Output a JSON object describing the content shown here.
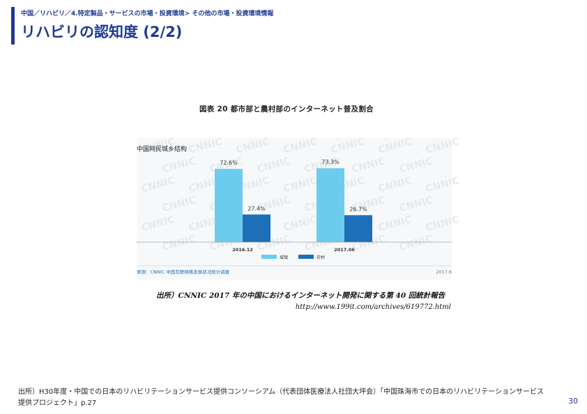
{
  "header": {
    "breadcrumb": "中国／リハビリ／4.特定製品・サービスの市場・投資環境> その他の市場・投資環境情報",
    "title": "リハビリの認知度 (2/2)"
  },
  "figure": {
    "title": "図表 20 都市部と農村部のインターネット普及割合",
    "source": "出所）CNNIC 2017 年の中国におけるインターネット開発に関する第 40 回統計報告",
    "url": "http://www.199it.com/archives/619772.html",
    "watermark": "CNNIC"
  },
  "chart_data": {
    "type": "bar",
    "title": "中国网民城乡结构",
    "categories": [
      "2016.12",
      "2017.06"
    ],
    "series": [
      {
        "name": "城镇",
        "values": [
          72.6,
          73.3
        ],
        "color": "#6dcbee"
      },
      {
        "name": "农村",
        "values": [
          27.4,
          26.7
        ],
        "color": "#1d70b7"
      }
    ],
    "value_labels": [
      [
        "72.6%",
        "73.3%"
      ],
      [
        "27.4%",
        "26.7%"
      ]
    ],
    "ylim": [
      0,
      80
    ],
    "grid": false,
    "legend": "bottom-center",
    "footer_source": "来源：CNNIC 中国互联网络发展状况统计调查",
    "footer_date": "2017.6"
  },
  "footer": {
    "note": "出所）H30年度・中国での日本のリハビリテーションサービス提供コンソーシアム（代表団体医療法人社団大坪会）「中国珠海市での日本のリハビリテーションサービス提供プロジェクト」p.27",
    "page": "30"
  }
}
